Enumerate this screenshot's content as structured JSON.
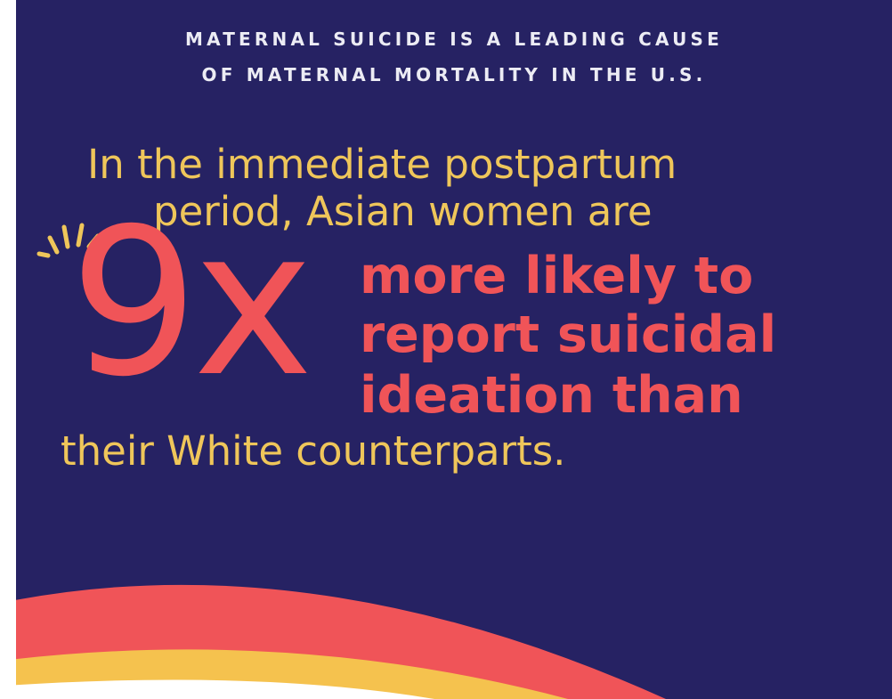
{
  "header": {
    "line1": "MATERNAL SUICIDE IS A LEADING CAUSE",
    "line2": "OF MATERNAL MORTALITY IN THE U.S."
  },
  "statement": {
    "lead_line1": "In the immediate postpartum",
    "lead_line2": "period, Asian women are",
    "multiplier": "9x",
    "emphasis_line1": "more likely to",
    "emphasis_line2": "report suicidal",
    "emphasis_line3": "ideation than",
    "tail_line": "their White counterparts."
  },
  "colors": {
    "background": "#262263",
    "header_text": "#ececf4",
    "lead_text": "#efc65a",
    "accent": "#f05458",
    "arc_red": "#f05458",
    "arc_yellow": "#f5c24e"
  },
  "icons": {
    "burst": "sparkle-burst-icon",
    "arc": "rainbow-arc"
  }
}
